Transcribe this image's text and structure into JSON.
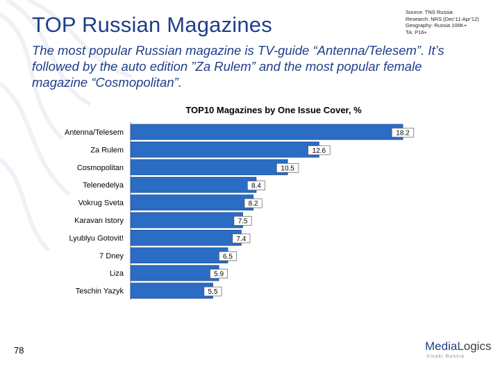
{
  "slide": {
    "title": "TOP Russian Magazines",
    "subtitle": "The most popular Russian magazine is TV-guide “Antenna/Telesem”. It’s followed by the auto edition ”Za Rulem” and the most popular female magazine “Cosmopolitan”.",
    "page_number": "78"
  },
  "source": {
    "line1": "Source: TNS Russia",
    "line2": "Research: NRS (Dec'11-Apr'12)",
    "line3": "Geography: Russia 100K+",
    "line4": "TA: P16+"
  },
  "logo": {
    "name_part1": "Media",
    "name_part2": "Logics",
    "tagline": "Vivaki  Russia"
  },
  "colors": {
    "bar_fill": "#2b6cc4",
    "bar_stroke": "#1c4f98",
    "title_color": "#1f3e8a",
    "value_box_bg": "#ffffff"
  },
  "chart_data": {
    "type": "bar",
    "orientation": "horizontal",
    "title": "TOP10 Magazines by One Issue Cover, %",
    "categories": [
      "Antenna/Telesem",
      "Za Rulem",
      "Cosmopolitan",
      "Telenedelya",
      "Vokrug Sveta",
      "Karavan Istory",
      "Lyublyu Gotovit!",
      "7 Dney",
      "Liza",
      "Teschin Yazyk"
    ],
    "values": [
      18.2,
      12.6,
      10.5,
      8.4,
      8.2,
      7.5,
      7.4,
      6.5,
      5.9,
      5.5
    ],
    "value_labels": [
      "18.2",
      "12.6",
      "10.5",
      "8.4",
      "8.2",
      "7.5",
      "7.4",
      "6.5",
      "5.9",
      "5.5"
    ],
    "xlim": [
      0,
      18.2
    ],
    "grid": false,
    "legend": "none"
  }
}
